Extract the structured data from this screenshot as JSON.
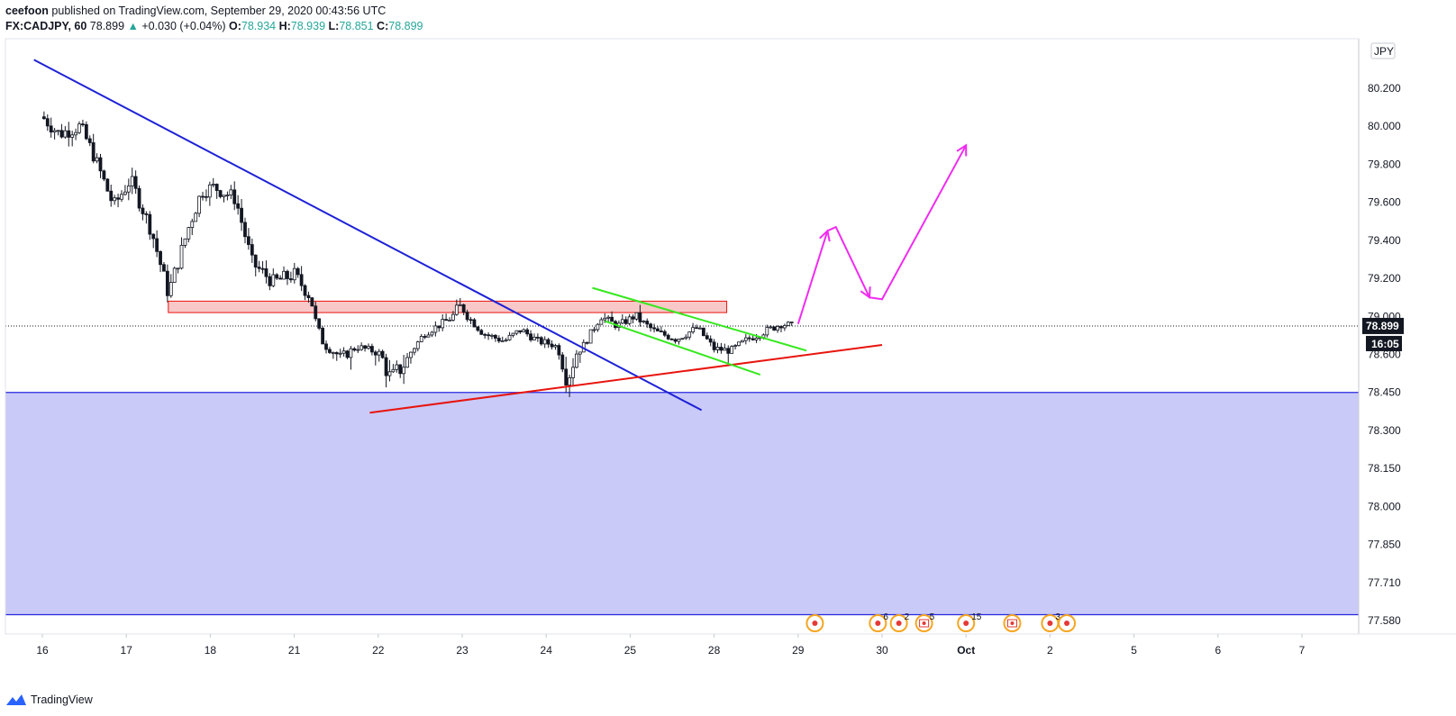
{
  "header": {
    "author": "ceefoon",
    "published_text": " published on TradingView.com, September 29, 2020 00:43:56 UTC"
  },
  "legend": {
    "symbol": "FX:CADJPY, 60",
    "last": "78.899",
    "change": "+0.030 (+0.04%)",
    "open_label": "O:",
    "open": "78.934",
    "high_label": "H:",
    "high": "78.939",
    "low_label": "L:",
    "low": "78.851",
    "close_label": "C:",
    "close": "78.899"
  },
  "footer": {
    "brand": "TradingView",
    "logo_icon": "tradingview-logo-icon"
  },
  "colors": {
    "bull": "#ffffff",
    "bear": "#131722",
    "trend_blue": "#1e22d6",
    "support_red": "#e8140e",
    "channel_green": "#36e81e",
    "projection": "#f02bf0",
    "resist_fill": "#f8c8c8",
    "resist_stroke": "#e8140e",
    "demand_fill": "#c9caf8",
    "demand_stroke": "#2727e0"
  },
  "chart_data": {
    "type": "candlestick",
    "title": "",
    "currency_label": "JPY",
    "y_ticks": [
      "80.200",
      "80.000",
      "79.800",
      "79.600",
      "79.400",
      "79.200",
      "79.000",
      "78.600",
      "78.450",
      "78.300",
      "78.150",
      "78.000",
      "77.850",
      "77.710",
      "77.580"
    ],
    "x_ticks": [
      {
        "label": "16",
        "t": 0
      },
      {
        "label": "17",
        "t": 1
      },
      {
        "label": "18",
        "t": 2
      },
      {
        "label": "21",
        "t": 3
      },
      {
        "label": "22",
        "t": 4
      },
      {
        "label": "23",
        "t": 5
      },
      {
        "label": "24",
        "t": 6
      },
      {
        "label": "25",
        "t": 7
      },
      {
        "label": "28",
        "t": 8
      },
      {
        "label": "29",
        "t": 9
      },
      {
        "label": "30",
        "t": 10
      },
      {
        "label": "Oct",
        "t": 11
      },
      {
        "label": "2",
        "t": 12
      },
      {
        "label": "5",
        "t": 13
      },
      {
        "label": "6",
        "t": 14
      },
      {
        "label": "7",
        "t": 15
      }
    ],
    "last_price": "78.899",
    "countdown": "16:05",
    "price_path": [
      [
        0.0,
        80.05
      ],
      [
        0.2,
        79.96
      ],
      [
        0.45,
        80.0
      ],
      [
        0.6,
        79.86
      ],
      [
        0.85,
        79.58
      ],
      [
        1.05,
        79.72
      ],
      [
        1.3,
        79.45
      ],
      [
        1.5,
        79.12
      ],
      [
        1.75,
        79.48
      ],
      [
        1.9,
        79.66
      ],
      [
        2.05,
        79.68
      ],
      [
        2.3,
        79.62
      ],
      [
        2.5,
        79.28
      ],
      [
        2.75,
        79.18
      ],
      [
        3.0,
        79.22
      ],
      [
        3.2,
        79.1
      ],
      [
        3.35,
        78.7
      ],
      [
        3.55,
        78.58
      ],
      [
        3.75,
        78.68
      ],
      [
        4.0,
        78.62
      ],
      [
        4.15,
        78.5
      ],
      [
        4.35,
        78.58
      ],
      [
        4.55,
        78.82
      ],
      [
        4.75,
        78.92
      ],
      [
        5.0,
        79.06
      ],
      [
        5.25,
        78.82
      ],
      [
        5.5,
        78.74
      ],
      [
        5.7,
        78.86
      ],
      [
        5.9,
        78.74
      ],
      [
        6.1,
        78.7
      ],
      [
        6.25,
        78.5
      ],
      [
        6.45,
        78.7
      ],
      [
        6.65,
        79.0
      ],
      [
        6.85,
        78.9
      ],
      [
        7.05,
        79.0
      ],
      [
        7.3,
        78.84
      ],
      [
        7.55,
        78.76
      ],
      [
        7.8,
        78.88
      ],
      [
        8.0,
        78.66
      ],
      [
        8.2,
        78.64
      ],
      [
        8.4,
        78.76
      ],
      [
        8.6,
        78.84
      ],
      [
        8.8,
        78.92
      ],
      [
        8.95,
        78.9
      ]
    ],
    "zones": {
      "resistance": {
        "t1": 1.5,
        "t2": 8.15,
        "p_low": 79.02,
        "p_high": 79.08
      },
      "demand": {
        "p_low": 77.6,
        "p_high": 78.45
      }
    },
    "trendlines": {
      "descending": {
        "t1": -0.1,
        "p1": 80.35,
        "t2": 7.85,
        "p2": 78.38
      },
      "ascending": {
        "t1": 3.9,
        "p1": 78.37,
        "t2": 10.0,
        "p2": 78.7
      },
      "channel_upper": {
        "t1": 6.55,
        "p1": 79.15,
        "t2": 9.1,
        "p2": 78.64
      },
      "channel_lower": {
        "t1": 6.7,
        "p1": 78.95,
        "t2": 8.55,
        "p2": 78.52
      }
    },
    "projection_path": [
      [
        9.0,
        78.92
      ],
      [
        9.35,
        79.45
      ],
      [
        9.45,
        79.47
      ],
      [
        9.85,
        79.1
      ],
      [
        10.0,
        79.09
      ],
      [
        11.0,
        79.9
      ]
    ],
    "projection_arrows": [
      {
        "from": [
          9.0,
          78.92
        ],
        "to": [
          9.35,
          79.45
        ]
      },
      {
        "from": [
          9.45,
          79.47
        ],
        "to": [
          9.85,
          79.1
        ]
      },
      {
        "from": [
          10.0,
          79.09
        ],
        "to": [
          11.0,
          79.9
        ]
      }
    ],
    "events": [
      {
        "t": 9.2,
        "count": "",
        "flag": false
      },
      {
        "t": 9.95,
        "count": "6",
        "flag": false
      },
      {
        "t": 10.2,
        "count": "2",
        "flag": false
      },
      {
        "t": 10.5,
        "count": "5",
        "flag": true
      },
      {
        "t": 11.0,
        "count": "15",
        "flag": false
      },
      {
        "t": 11.55,
        "count": "",
        "flag": true
      },
      {
        "t": 12.0,
        "count": "3",
        "flag": false
      },
      {
        "t": 12.2,
        "count": "",
        "flag": false
      }
    ]
  }
}
